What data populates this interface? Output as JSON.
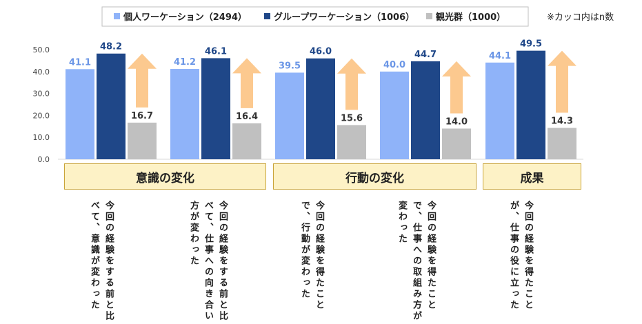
{
  "note": "※カッコ内はn数",
  "legend": [
    {
      "label": "個人ワーケーション（2494）",
      "color": "#8fb3f9"
    },
    {
      "label": "グループワーケーション（1006）",
      "color": "#1f4788"
    },
    {
      "label": "観光群（1000）",
      "color": "#c0c0c0"
    }
  ],
  "groups": [
    {
      "label": "意識の変化"
    },
    {
      "label": "行動の変化"
    },
    {
      "label": "成果"
    }
  ],
  "chart_data": {
    "type": "bar",
    "categories": [
      "今回の経験をする前と比べて、意識が変わった",
      "今回の経験をする前と比べて、仕事への向き合い方が変わった",
      "今回の経験を得たことで、行動が変わった",
      "今回の経験を得たことで、仕事への取組み方が変わった",
      "今回の経験を得たことが、仕事の役に立った"
    ],
    "series": [
      {
        "name": "個人ワーケーション（2494）",
        "values": [
          41.1,
          41.2,
          39.5,
          40.0,
          44.1
        ],
        "color": "#8fb3f9",
        "label_color": "#6b96e6"
      },
      {
        "name": "グループワーケーション（1006）",
        "values": [
          48.2,
          46.1,
          46.0,
          44.7,
          49.5
        ],
        "color": "#1f4788",
        "label_color": "#1f4788"
      },
      {
        "name": "観光群（1000）",
        "values": [
          16.7,
          16.4,
          15.6,
          14.0,
          14.3
        ],
        "color": "#c0c0c0",
        "label_color": "#333333"
      }
    ],
    "yticks": [
      "0.0",
      "10.0",
      "20.0",
      "30.0",
      "40.0",
      "50.0"
    ],
    "ylim": [
      0,
      50
    ],
    "grid": false
  }
}
